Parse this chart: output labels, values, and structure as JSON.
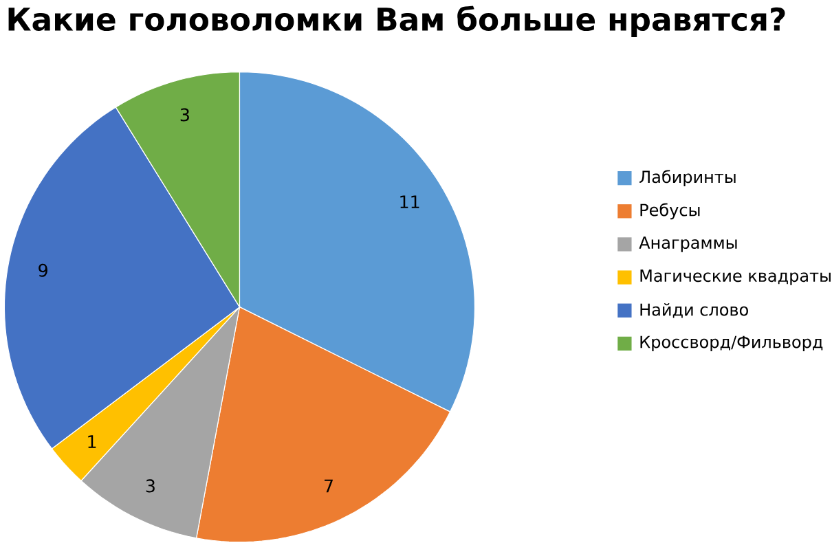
{
  "chart_data": {
    "type": "pie",
    "title": "Какие головоломки Вам больше нравятся?",
    "categories": [
      "Лабиринты",
      "Ребусы",
      "Анаграммы",
      "Магические квадраты",
      "Найди слово",
      "Кроссворд/Фильворд"
    ],
    "values": [
      11,
      7,
      3,
      1,
      9,
      3
    ],
    "colors": [
      "#5b9bd5",
      "#ed7d31",
      "#a5a5a5",
      "#ffc000",
      "#4472c4",
      "#70ad47"
    ],
    "data_labels": true,
    "legend": "right"
  }
}
